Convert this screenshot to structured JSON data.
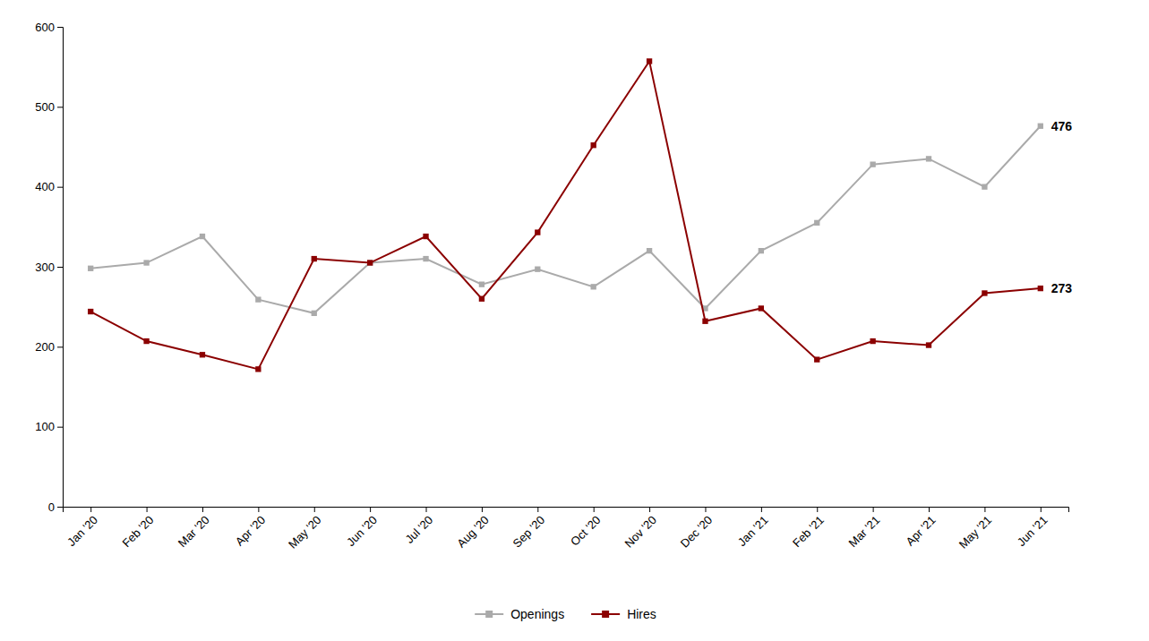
{
  "chart_data": {
    "type": "line",
    "categories": [
      "Jan '20",
      "Feb '20",
      "Mar '20",
      "Apr '20",
      "May '20",
      "Jun '20",
      "Jul '20",
      "Aug '20",
      "Sep '20",
      "Oct '20",
      "Nov '20",
      "Dec '20",
      "Jan '21",
      "Feb '21",
      "Mar '21",
      "Apr '21",
      "May '21",
      "Jun '21"
    ],
    "series": [
      {
        "name": "Openings",
        "color": "#aaaaaa",
        "marker": "square",
        "values": [
          298,
          305,
          338,
          259,
          242,
          305,
          310,
          278,
          297,
          275,
          320,
          248,
          320,
          355,
          428,
          435,
          400,
          476
        ]
      },
      {
        "name": "Hires",
        "color": "#8B0000",
        "marker": "square",
        "values": [
          244,
          207,
          190,
          172,
          310,
          305,
          338,
          260,
          343,
          452,
          557,
          232,
          248,
          184,
          207,
          202,
          267,
          273
        ]
      }
    ],
    "annotations": [
      {
        "text": "476",
        "x": "Jun '21",
        "y": 476
      },
      {
        "text": "273",
        "x": "Jun '21",
        "y": 273
      }
    ],
    "ylim": [
      0,
      600
    ],
    "yticks": [
      0,
      100,
      200,
      300,
      400,
      500,
      600
    ],
    "grid": false,
    "legend": "bottom"
  }
}
